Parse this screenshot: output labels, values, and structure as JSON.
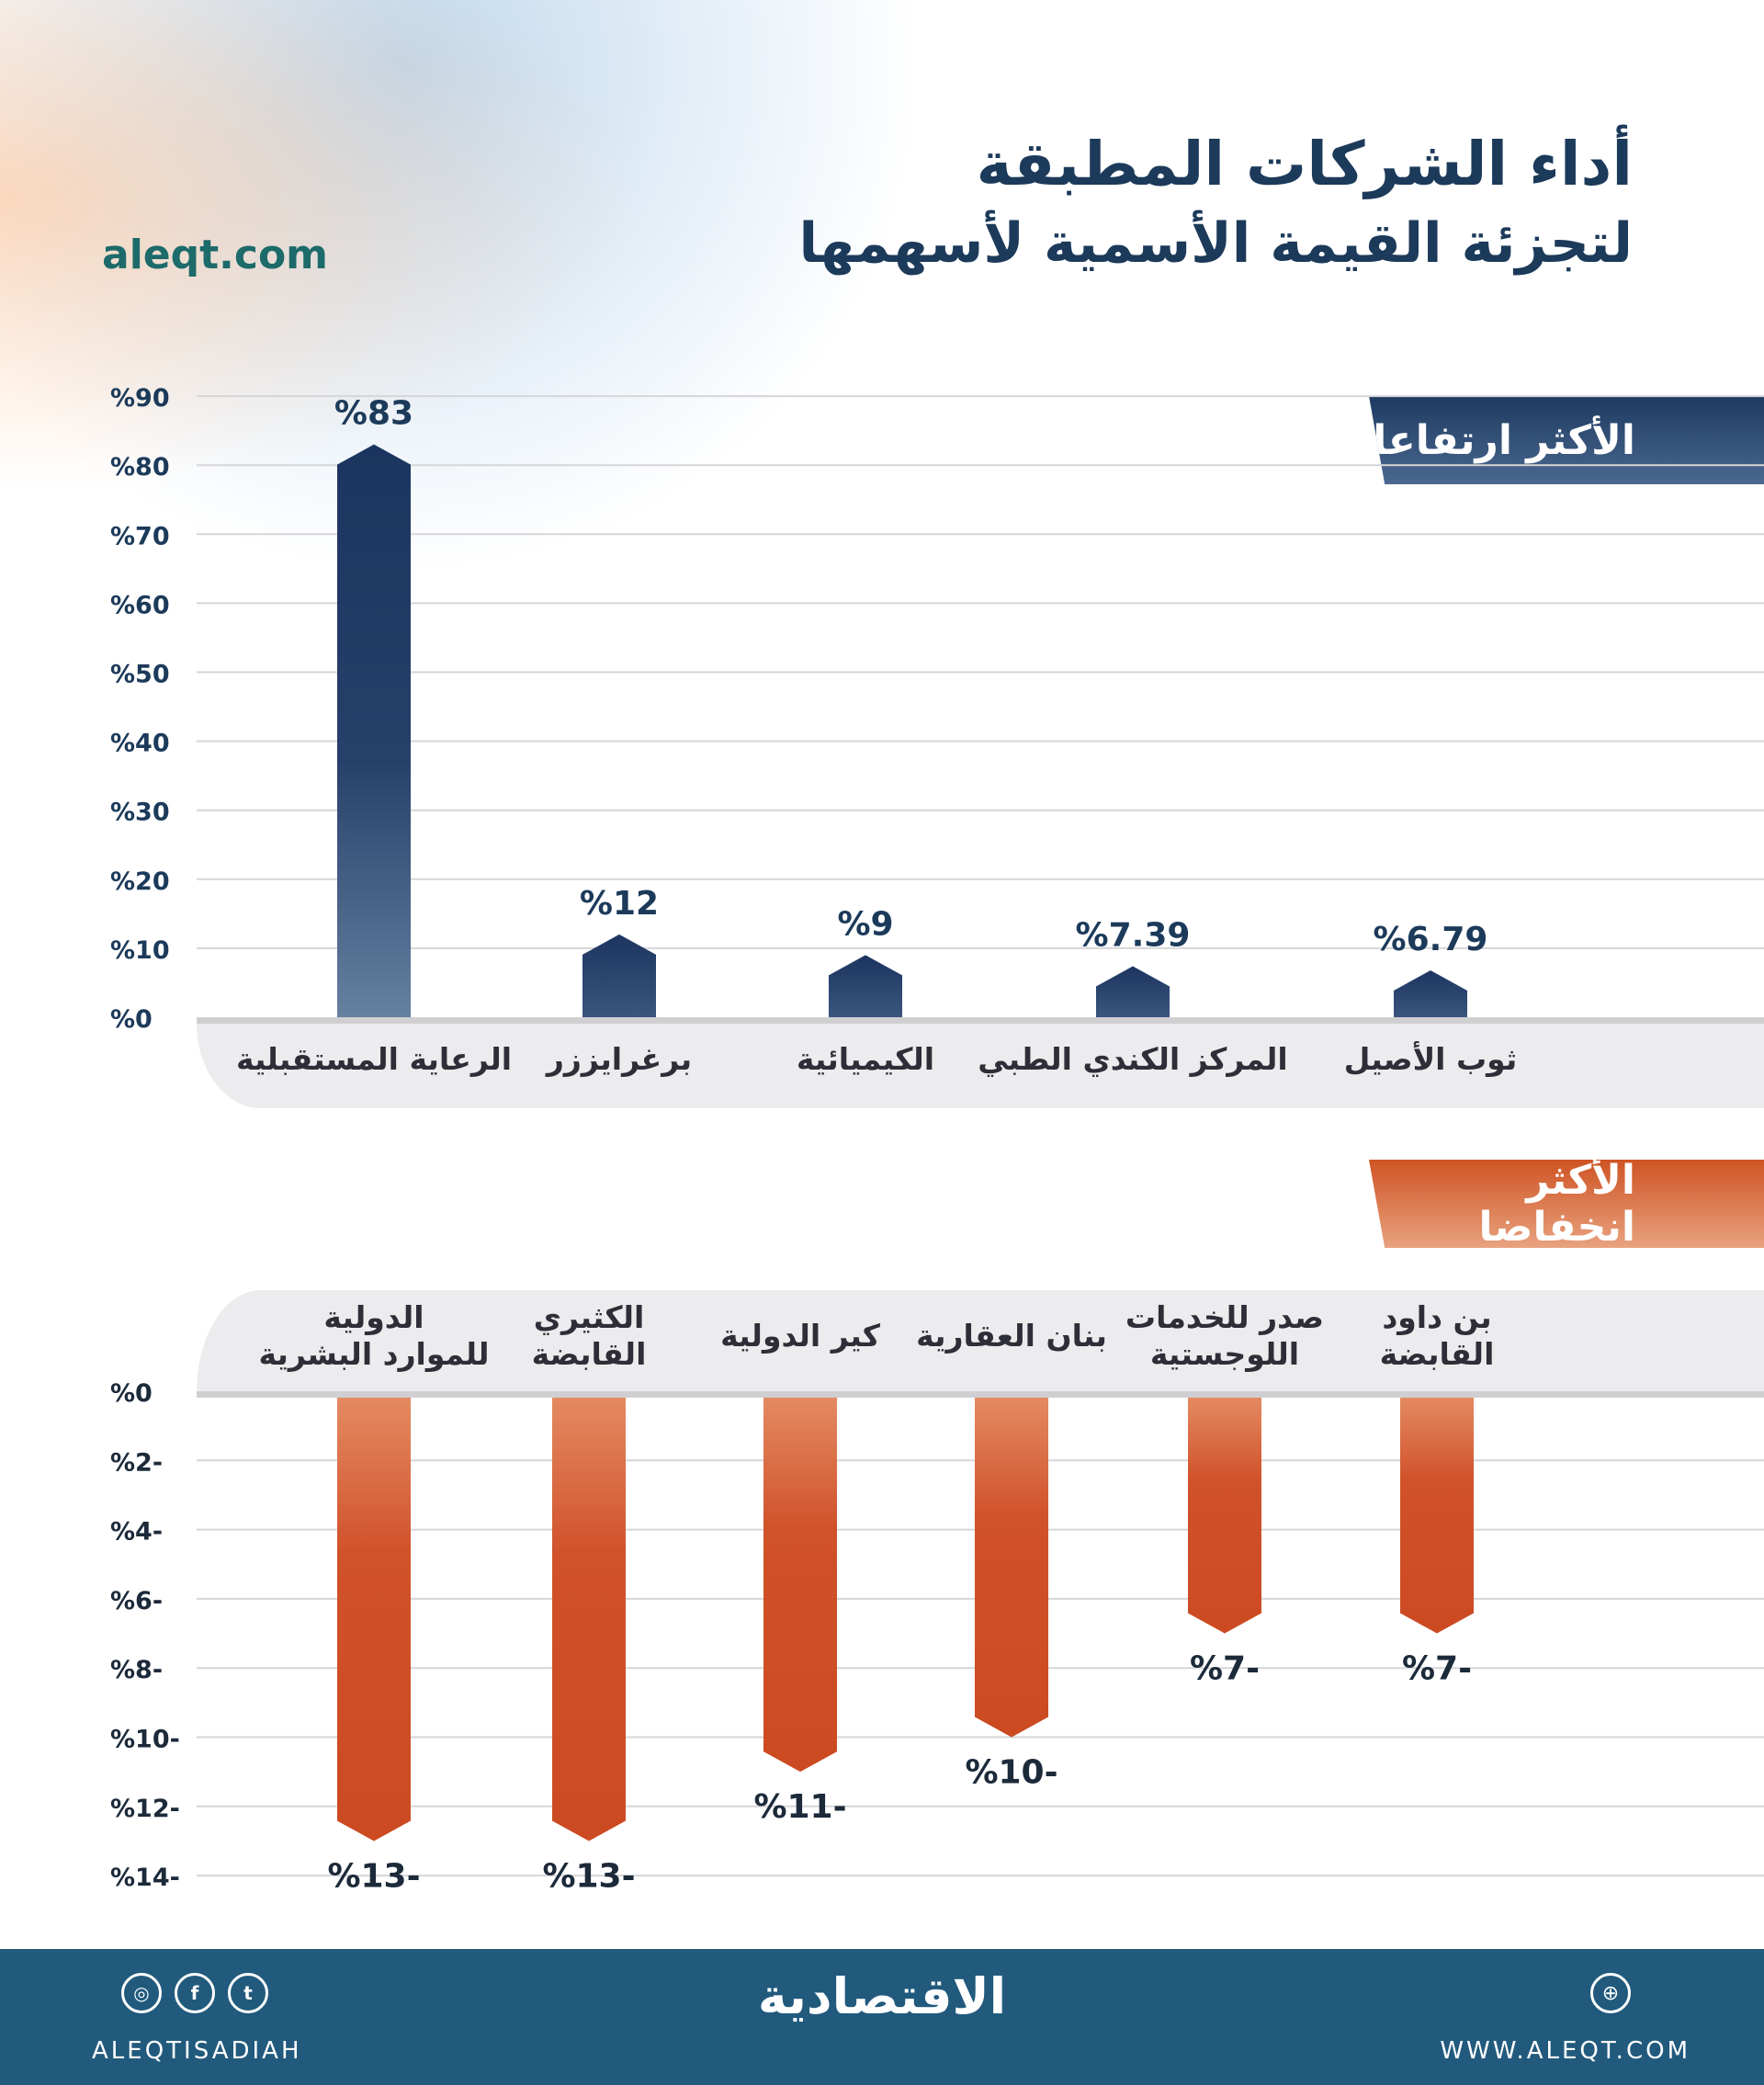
{
  "header": {
    "title_line1": "أداء الشركات المطبقة",
    "title_line2": "لتجزئة القيمة الأسمية لأسهمها",
    "site": "aleqt.com"
  },
  "colors": {
    "up": "#1e3a60",
    "down": "#d0522a",
    "footer": "#215a7d",
    "title": "#1c3a5a"
  },
  "chart_data": [
    {
      "type": "bar",
      "title": "الأكثر ارتفاعا",
      "categories": [
        "الرعاية المستقبلية",
        "برغرايززر",
        "الكيميائية",
        "المركز الكندي الطبي",
        "ثوب الأصيل"
      ],
      "values": [
        83,
        12,
        9,
        7.39,
        6.79
      ],
      "value_labels": [
        "%83",
        "%12",
        "%9",
        "%7.39",
        "%6.79"
      ],
      "ylim": [
        0,
        90
      ],
      "yticks": [
        0,
        10,
        20,
        30,
        40,
        50,
        60,
        70,
        80,
        90
      ],
      "ytick_labels": [
        "%0",
        "%10",
        "%20",
        "%30",
        "%40",
        "%50",
        "%60",
        "%70",
        "%80",
        "%90"
      ],
      "grid": true
    },
    {
      "type": "bar",
      "title": "الأكثر انخفاضا",
      "categories": [
        "الدولية\nللموارد البشرية",
        "الكثيري\nالقابضة",
        "كير الدولية",
        "بنان العقارية",
        "صدر للخدمات\nاللوجستية",
        "بن داود\nالقابضة"
      ],
      "values": [
        -13,
        -13,
        -11,
        -10,
        -7,
        -7
      ],
      "value_labels": [
        "%13-",
        "%13-",
        "%11-",
        "%10-",
        "%7-",
        "%7-"
      ],
      "ylim": [
        -14,
        0
      ],
      "yticks": [
        0,
        -2,
        -4,
        -6,
        -8,
        -10,
        -12,
        -14
      ],
      "ytick_labels": [
        "%0",
        "%2-",
        "%4-",
        "%6-",
        "%8-",
        "%10-",
        "%12-",
        "%14-"
      ],
      "grid": true
    }
  ],
  "footer": {
    "handle": "ALEQTISADIAH",
    "logo": "الاقتصادية",
    "website": "WWW.ALEQT.COM",
    "social_icons": [
      "instagram-icon",
      "facebook-icon",
      "twitter-icon"
    ],
    "social_glyphs": [
      "◎",
      "f",
      "t"
    ],
    "globe_glyph": "⊕"
  }
}
